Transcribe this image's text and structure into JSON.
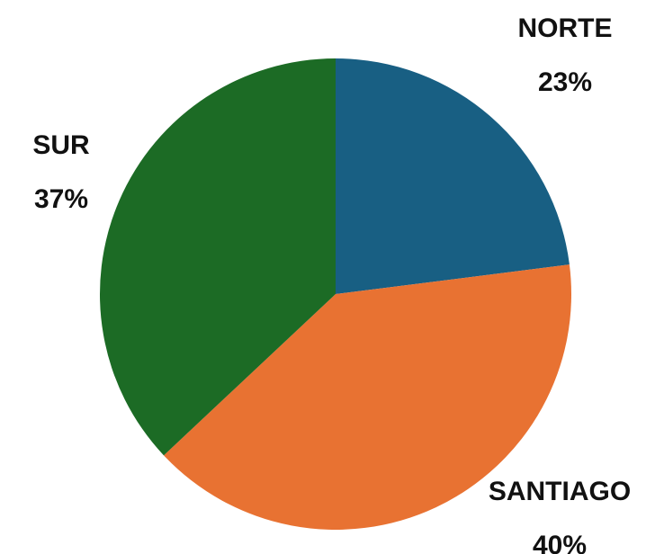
{
  "chart_data": {
    "type": "pie",
    "categories": [
      "NORTE",
      "SANTIAGO",
      "SUR"
    ],
    "values": [
      23,
      40,
      37
    ],
    "value_labels": [
      "23%",
      "40%",
      "37%"
    ],
    "colors": [
      "#185f83",
      "#e87232",
      "#1c6b25"
    ]
  }
}
